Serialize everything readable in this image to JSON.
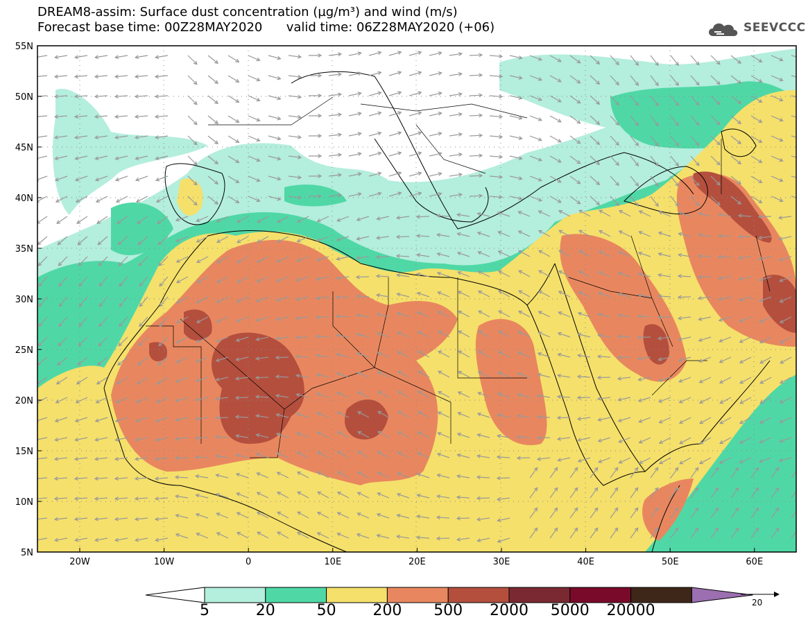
{
  "title_line1": "DREAM8-assim: Surface dust concentration (µg/m³) and wind (m/s)",
  "title_line2": "Forecast base time: 00Z28MAY2020      valid time: 06Z28MAY2020 (+06)",
  "logo_text": "SEEVCCC",
  "lat_labels": [
    "55N",
    "50N",
    "45N",
    "40N",
    "35N",
    "30N",
    "25N",
    "20N",
    "15N",
    "10N",
    "5N"
  ],
  "lon_labels": [
    "20W",
    "10W",
    "0",
    "10E",
    "20E",
    "30E",
    "40E",
    "50E",
    "60E"
  ],
  "colorbar": {
    "labels": [
      "5",
      "20",
      "50",
      "200",
      "500",
      "2000",
      "5000",
      "20000"
    ],
    "colors": [
      "#ffffff",
      "#b4eedd",
      "#4fd8a6",
      "#f5e06b",
      "#e8875f",
      "#b44f3e",
      "#7a2932",
      "#7a0a2a",
      "#3e2718",
      "#9b6fb0"
    ]
  },
  "wind_reference": {
    "value": "20"
  },
  "map_colors": {
    "c5": "#b4eedd",
    "c20": "#4fd8a6",
    "c50": "#f5e06b",
    "c200": "#e8875f",
    "c500": "#b44f3e",
    "c2000": "#7a2932",
    "arrow": "#999999",
    "coast": "#000000"
  }
}
